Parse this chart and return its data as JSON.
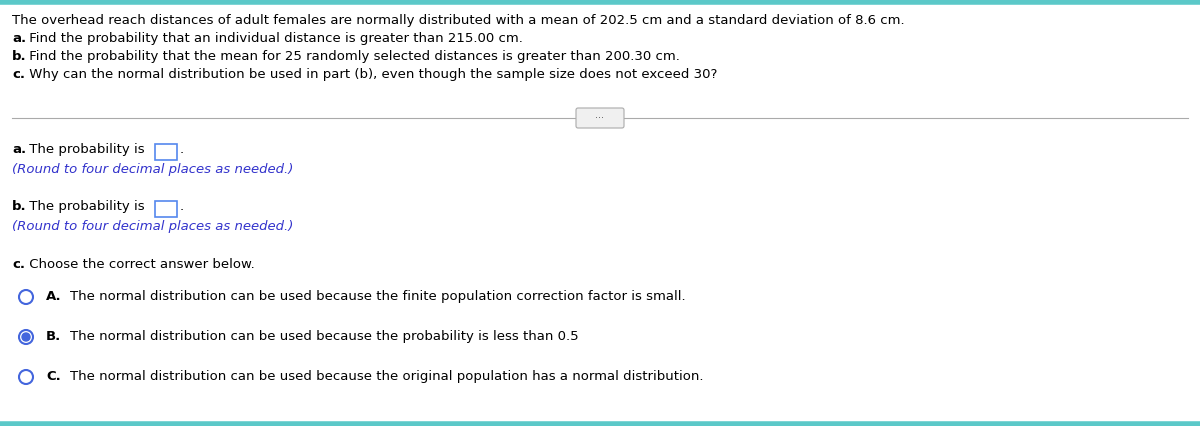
{
  "background_color": "#ffffff",
  "top_border_color": "#5bc8c8",
  "separator_color": "#aaaaaa",
  "text_color_black": "#000000",
  "text_color_blue": "#3333cc",
  "header_lines": [
    "The overhead reach distances of adult females are normally distributed with a mean of 202.5 cm and a standard deviation of 8.6 cm.",
    "a. Find the probability that an individual distance is greater than 215.00 cm.",
    "b. Find the probability that the mean for 25 randomly selected distances is greater than 200.30 cm.",
    "c. Why can the normal distribution be used in part (b), even though the sample size does not exceed 30?"
  ],
  "answer_a_prefix": "a. The probability is",
  "answer_a_note": "(Round to four decimal places as needed.)",
  "answer_b_prefix": "b. The probability is",
  "answer_b_note": "(Round to four decimal places as needed.)",
  "answer_c_label": "c. Choose the correct answer below.",
  "choices": [
    {
      "label": "A.",
      "text": "The normal distribution can be used because the finite population correction factor is small.",
      "selected": false
    },
    {
      "label": "B.",
      "text": "The normal distribution can be used because the probability is less than 0.5",
      "selected": true
    },
    {
      "label": "C.",
      "text": "The normal distribution can be used because the original population has a normal distribution.",
      "selected": false
    }
  ],
  "radio_color": "#4466dd",
  "radio_fill_color": "#4466dd",
  "input_box_color": "#5588ee",
  "figsize": [
    12.0,
    4.26
  ],
  "dpi": 100
}
